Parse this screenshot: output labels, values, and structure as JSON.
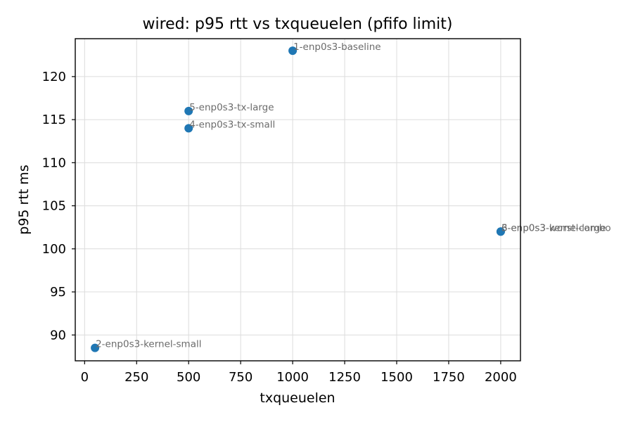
{
  "chart_data": {
    "type": "scatter",
    "title": "wired: p95 rtt vs txqueuelen (pfifo limit)",
    "xlabel": "txqueuelen",
    "ylabel": "p95 rtt ms",
    "xlim": [
      -45,
      2095
    ],
    "ylim": [
      87,
      124.4
    ],
    "xticks": [
      0,
      250,
      500,
      750,
      1000,
      1250,
      1500,
      1750,
      2000
    ],
    "yticks": [
      90,
      95,
      100,
      105,
      110,
      115,
      120
    ],
    "grid": true,
    "marker_color": "#1f77b4",
    "label_color": "#6b6b6b",
    "points": [
      {
        "label": "1-enp0s3-baseline",
        "x": 1000,
        "y": 123
      },
      {
        "label": "2-enp0s3-kernel-small",
        "x": 50,
        "y": 88.5
      },
      {
        "label": "3-enp0s3-kernel-large",
        "x": 2000,
        "y": 102
      },
      {
        "label": "4-enp0s3-tx-small",
        "x": 500,
        "y": 114
      },
      {
        "label": "5-enp0s3-tx-large",
        "x": 500,
        "y": 116
      },
      {
        "label": "6-enp0s3-worst-combo",
        "x": 2000,
        "y": 102
      }
    ]
  }
}
